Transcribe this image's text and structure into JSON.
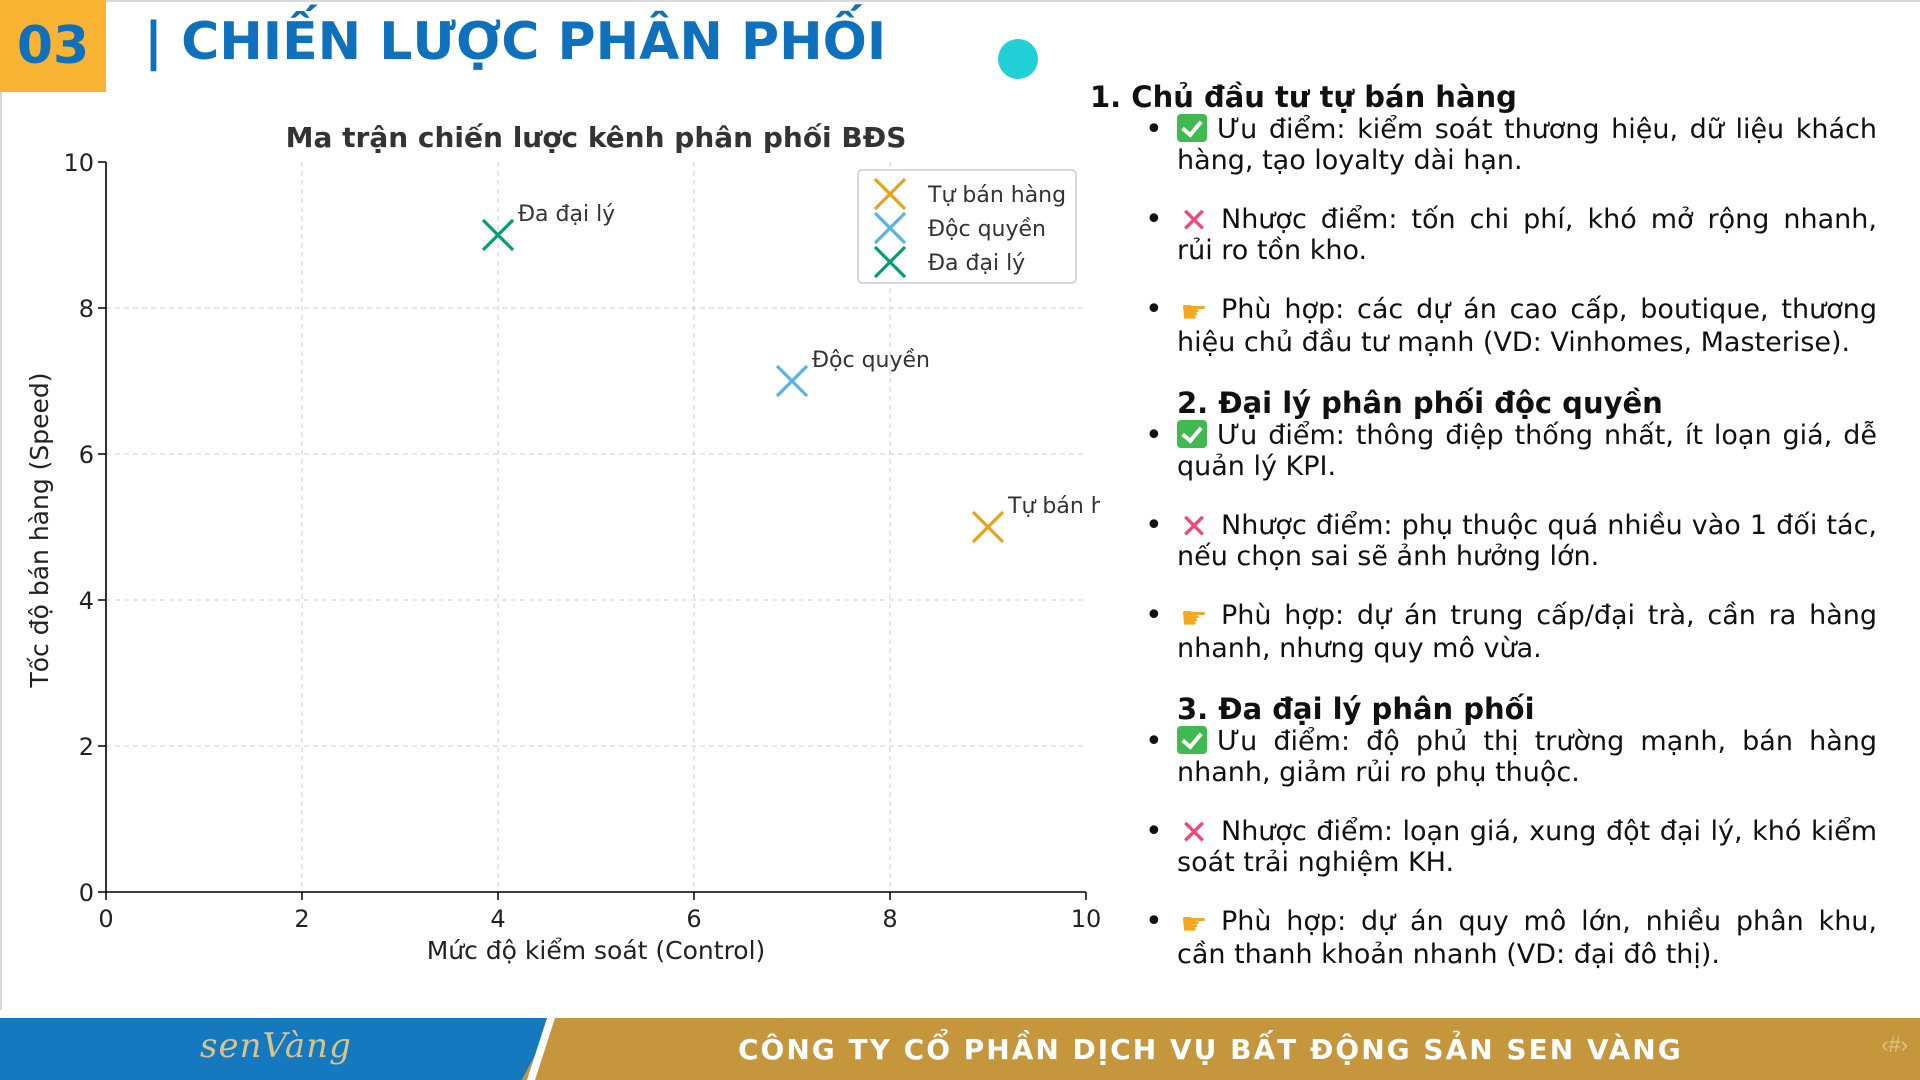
{
  "header": {
    "slide_number": "03",
    "title": "| CHIẾN LƯỢC PHÂN PHỐI"
  },
  "chart_data": {
    "type": "scatter",
    "title": "Ma trận chiến lược kênh phân phối BĐS",
    "xlabel": "Mức độ kiểm soát (Control)",
    "ylabel": "Tốc độ bán hàng (Speed)",
    "xlim": [
      0,
      10
    ],
    "ylim": [
      0,
      10
    ],
    "xticks": [
      "0",
      "2",
      "4",
      "6",
      "8",
      "10"
    ],
    "yticks": [
      "0",
      "2",
      "4",
      "6",
      "8",
      "10"
    ],
    "grid": true,
    "legend_position": "top-right",
    "series": [
      {
        "name": "Tự bán hàng",
        "label": "Tự bán hàng",
        "color": "#e8a21a",
        "x": 9,
        "y": 5
      },
      {
        "name": "Độc quyền",
        "label": "Độc quyền",
        "color": "#56b4e9",
        "x": 7,
        "y": 7
      },
      {
        "name": "Đa đại lý",
        "label": "Đa đại lý",
        "color": "#009e73",
        "x": 4,
        "y": 9
      }
    ]
  },
  "sections": [
    {
      "heading": "1. Chủ đầu tư tự bán hàng",
      "items": [
        {
          "icon": "check-icon",
          "text": "Ưu điểm: kiểm soát thương hiệu, dữ liệu khách hàng, tạo loyalty dài hạn."
        },
        {
          "icon": "cross-icon",
          "text": "Nhược điểm: tốn chi phí, khó mở rộng nhanh, rủi ro tồn kho."
        },
        {
          "icon": "pointing-hand-icon",
          "text": "Phù hợp: các dự án cao cấp, boutique, thương hiệu chủ đầu tư mạnh (VD: Vinhomes, Masterise)."
        }
      ]
    },
    {
      "heading": "2. Đại lý phân phối độc quyền",
      "items": [
        {
          "icon": "check-icon",
          "text": "Ưu điểm: thông điệp thống nhất, ít loạn giá, dễ quản lý KPI."
        },
        {
          "icon": "cross-icon",
          "text": "Nhược điểm: phụ thuộc quá nhiều vào 1 đối tác, nếu chọn sai sẽ ảnh hưởng lớn."
        },
        {
          "icon": "pointing-hand-icon",
          "text": "Phù hợp: dự án trung cấp/đại trà, cần ra hàng nhanh, nhưng quy mô vừa."
        }
      ]
    },
    {
      "heading": "3. Đa đại lý phân phối",
      "items": [
        {
          "icon": "check-icon",
          "text": "Ưu điểm: độ phủ thị trường mạnh, bán hàng nhanh, giảm rủi ro phụ thuộc."
        },
        {
          "icon": "cross-icon",
          "text": "Nhược điểm: loạn giá, xung đột đại lý, khó kiểm soát trải nghiệm KH."
        },
        {
          "icon": "pointing-hand-icon",
          "text": "Phù hợp: dự án quy mô lớn, nhiều phân khu, cần thanh khoản nhanh (VD: đại đô thị)."
        }
      ]
    }
  ],
  "footer": {
    "logo_text": "senVàng",
    "company": "CÔNG TY CỔ PHẦN DỊCH VỤ BẤT ĐỘNG SẢN SEN VÀNG",
    "page_placeholder": "‹#›"
  },
  "colors": {
    "brand_blue": "#0f71bc",
    "brand_orange": "#f8b333",
    "footer_gold": "#c5963c",
    "accent_cyan": "#21cfd6"
  }
}
